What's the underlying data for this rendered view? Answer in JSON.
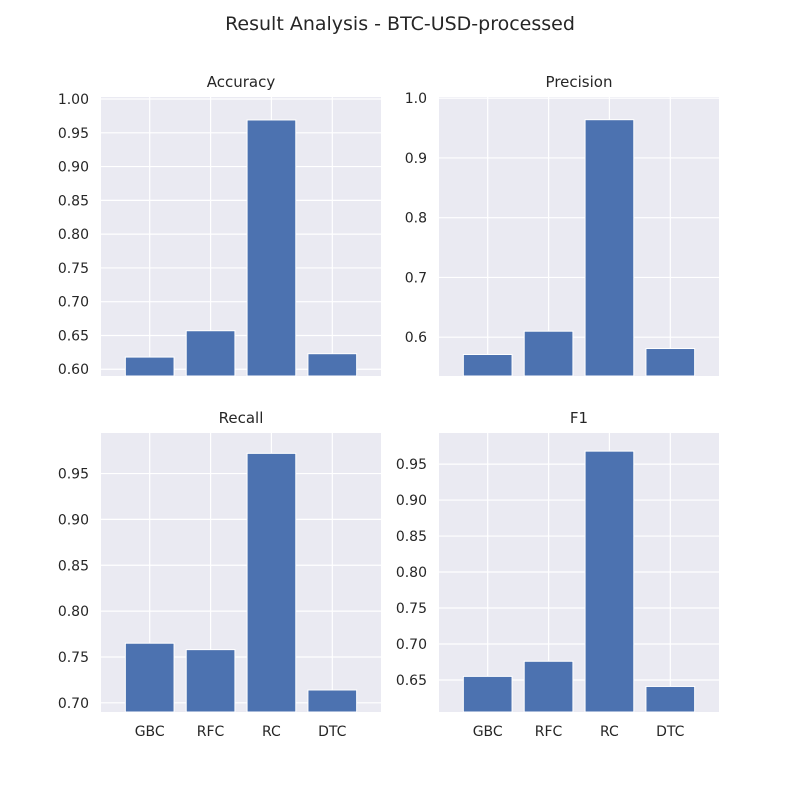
{
  "figure": {
    "title": "Result Analysis - BTC-USD-processed"
  },
  "colors": {
    "bar": "#4c72b0",
    "axes_background": "#eaeaf2",
    "grid": "#ffffff",
    "text": "#262626"
  },
  "chart_data": [
    {
      "type": "bar",
      "title": "Accuracy",
      "categories": [
        "GBC",
        "RFC",
        "RC",
        "DTC"
      ],
      "values": [
        0.618,
        0.657,
        0.969,
        0.623
      ],
      "ylim": [
        0.59,
        1.003
      ],
      "yticks": [
        0.6,
        0.65,
        0.7,
        0.75,
        0.8,
        0.85,
        0.9,
        0.95,
        1.0
      ],
      "ytick_labels": [
        "0.60",
        "0.65",
        "0.70",
        "0.75",
        "0.80",
        "0.85",
        "0.90",
        "0.95",
        "1.00"
      ],
      "show_xtick_labels": false,
      "grid": true,
      "xlabel": "",
      "ylabel": ""
    },
    {
      "type": "bar",
      "title": "Precision",
      "categories": [
        "GBC",
        "RFC",
        "RC",
        "DTC"
      ],
      "values": [
        0.571,
        0.61,
        0.964,
        0.581
      ],
      "ylim": [
        0.535,
        1.002
      ],
      "yticks": [
        0.6,
        0.7,
        0.8,
        0.9,
        1.0
      ],
      "ytick_labels": [
        "0.6",
        "0.7",
        "0.8",
        "0.9",
        "1.0"
      ],
      "show_xtick_labels": false,
      "grid": true,
      "xlabel": "",
      "ylabel": ""
    },
    {
      "type": "bar",
      "title": "Recall",
      "categories": [
        "GBC",
        "RFC",
        "RC",
        "DTC"
      ],
      "values": [
        0.765,
        0.758,
        0.972,
        0.714
      ],
      "ylim": [
        0.69,
        0.9942
      ],
      "yticks": [
        0.7,
        0.75,
        0.8,
        0.85,
        0.9,
        0.95
      ],
      "ytick_labels": [
        "0.70",
        "0.75",
        "0.80",
        "0.85",
        "0.90",
        "0.95"
      ],
      "show_xtick_labels": true,
      "grid": true,
      "xlabel": "",
      "ylabel": ""
    },
    {
      "type": "bar",
      "title": "F1",
      "categories": [
        "GBC",
        "RFC",
        "RC",
        "DTC"
      ],
      "values": [
        0.655,
        0.676,
        0.968,
        0.641
      ],
      "ylim": [
        0.6055,
        0.9932
      ],
      "yticks": [
        0.65,
        0.7,
        0.75,
        0.8,
        0.85,
        0.9,
        0.95
      ],
      "ytick_labels": [
        "0.65",
        "0.70",
        "0.75",
        "0.80",
        "0.85",
        "0.90",
        "0.95"
      ],
      "show_xtick_labels": true,
      "grid": true,
      "xlabel": "",
      "ylabel": ""
    }
  ]
}
